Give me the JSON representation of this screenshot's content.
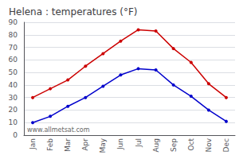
{
  "chart_data": {
    "type": "line",
    "title": "Helena : temperatures (°F)",
    "categories": [
      "Jan",
      "Feb",
      "Mar",
      "Apr",
      "May",
      "Jun",
      "Jul",
      "Aug",
      "Sep",
      "Oct",
      "Nov",
      "Dec"
    ],
    "series": [
      {
        "color": "#cc0000",
        "values": [
          30,
          37,
          44,
          55,
          65,
          75,
          84,
          83,
          69,
          58,
          41,
          30
        ]
      },
      {
        "color": "#0000cc",
        "values": [
          10,
          15,
          23,
          30,
          39,
          48,
          53,
          52,
          40,
          31,
          20,
          11
        ]
      }
    ],
    "marker": "circle",
    "ylim": [
      0,
      90
    ],
    "yticks": [
      0,
      10,
      20,
      30,
      40,
      50,
      60,
      70,
      80,
      90
    ],
    "grid": true,
    "annotation": "www.allmetsat.com"
  }
}
